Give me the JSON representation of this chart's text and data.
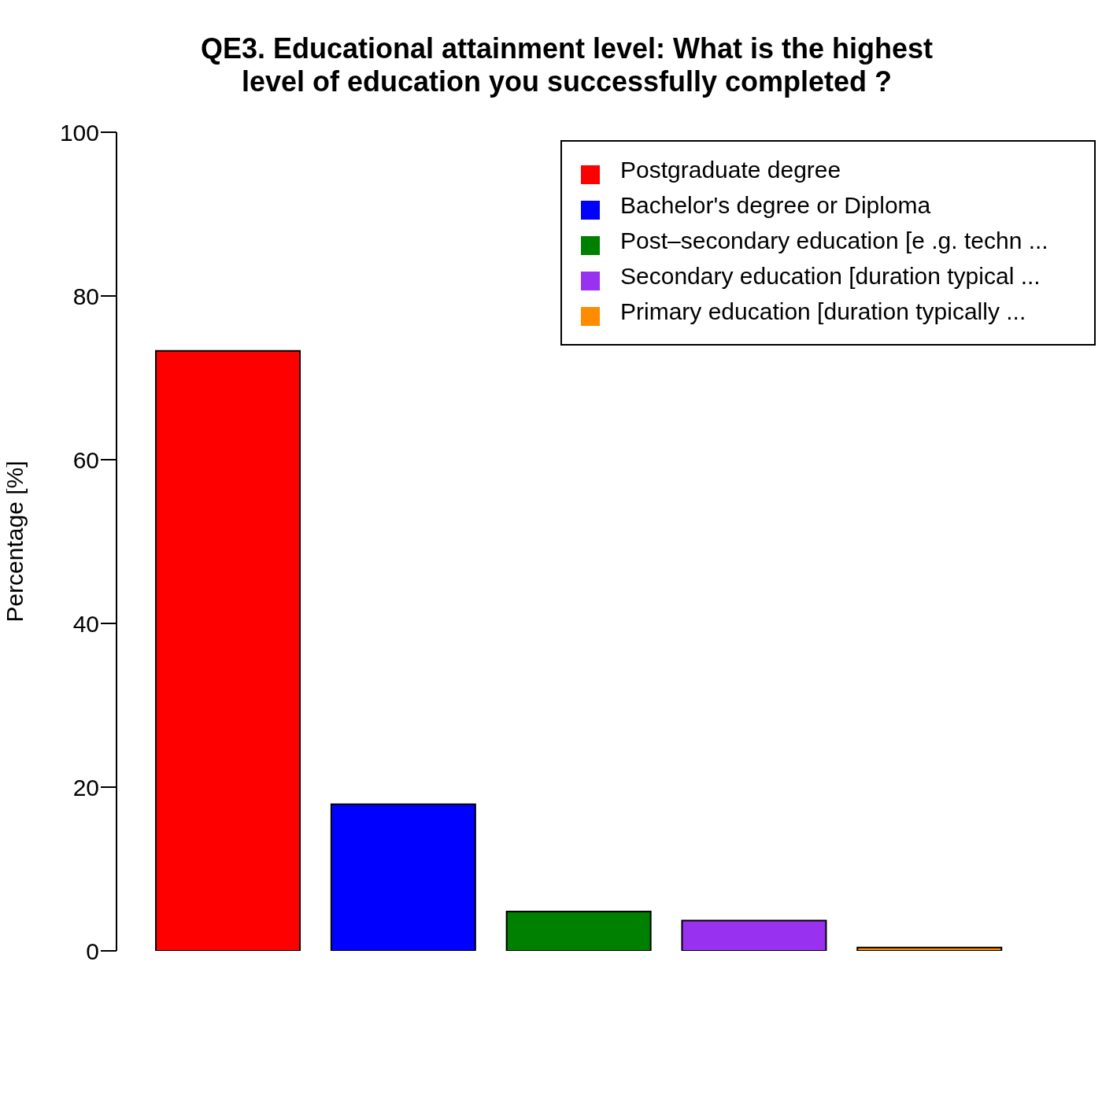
{
  "chart_data": {
    "type": "bar",
    "title": "QE3. Educational attainment level: What is the highest level of education you successfully completed ?",
    "ylabel": "Percentage [%]",
    "categories": [
      null,
      null,
      null,
      null,
      null
    ],
    "stacked": true,
    "series": [
      {
        "name": "Postgraduate degree",
        "color": "#ff0000",
        "values": [
          73.3,
          null,
          null,
          null,
          null
        ]
      },
      {
        "name": "Bachelor's degree or Diploma",
        "color": "#0000ff",
        "values": [
          null,
          17.9,
          null,
          null,
          null
        ]
      },
      {
        "name": "Post–secondary education [e .g. techn ...",
        "color": "#008000",
        "values": [
          null,
          null,
          4.8,
          null,
          null
        ]
      },
      {
        "name": "Secondary education [duration typical ...",
        "color": "#9932f0",
        "values": [
          null,
          null,
          null,
          3.7,
          null
        ]
      },
      {
        "name": "Primary education [duration typically ...",
        "color": "#ff8c00",
        "values": [
          null,
          null,
          null,
          null,
          0.4
        ]
      }
    ],
    "ylim": [
      0,
      100
    ],
    "yticks": [
      0,
      20,
      40,
      60,
      80,
      100
    ],
    "grid": false,
    "legend": "top right"
  }
}
